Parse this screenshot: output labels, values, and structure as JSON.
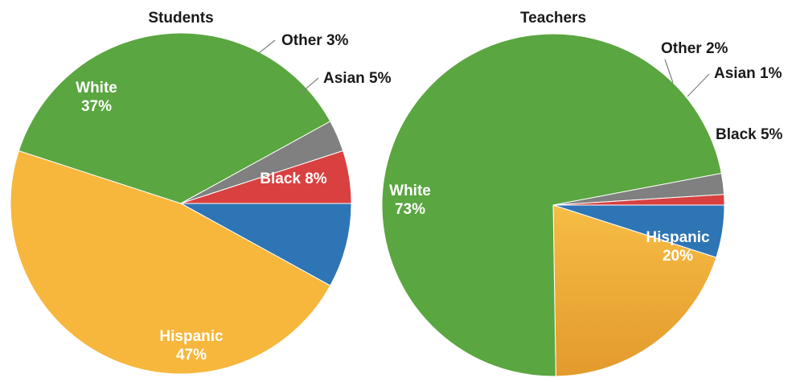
{
  "chart_data": [
    {
      "type": "pie",
      "title": "Students",
      "slices": [
        {
          "name": "Black",
          "value": 8,
          "label_pct": "8%",
          "color": "#2e75b6"
        },
        {
          "name": "Hispanic",
          "value": 47,
          "label_pct": "47%",
          "color": "#f6b73c"
        },
        {
          "name": "White",
          "value": 37,
          "label_pct": "37%",
          "color": "#5aa640"
        },
        {
          "name": "Other",
          "value": 3,
          "label_pct": "3%",
          "color": "#808080"
        },
        {
          "name": "Asian",
          "value": 5,
          "label_pct": "5%",
          "color": "#d94040"
        }
      ]
    },
    {
      "type": "pie",
      "title": "Teachers",
      "slices": [
        {
          "name": "Black",
          "value": 5,
          "label_pct": "5%",
          "color": "#2e75b6"
        },
        {
          "name": "Hispanic",
          "value": 20,
          "label_pct": "20%",
          "color": "#f2b23a"
        },
        {
          "name": "White",
          "value": 73,
          "label_pct": "73%",
          "color": "#5aa640"
        },
        {
          "name": "Other",
          "value": 2,
          "label_pct": "2%",
          "color": "#808080"
        },
        {
          "name": "Asian",
          "value": 1,
          "label_pct": "1%",
          "color": "#d94040"
        }
      ]
    }
  ]
}
